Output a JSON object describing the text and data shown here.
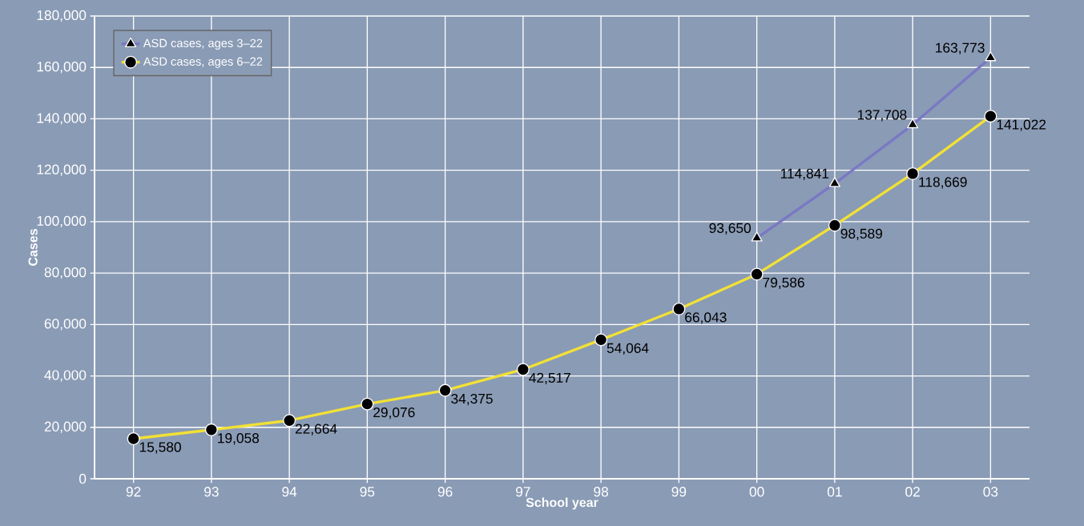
{
  "chart_data": {
    "type": "line",
    "xlabel": "School year",
    "ylabel": "Cases",
    "categories": [
      "92",
      "93",
      "94",
      "95",
      "96",
      "97",
      "98",
      "99",
      "00",
      "01",
      "02",
      "03"
    ],
    "series": [
      {
        "name": "ASD cases, ages 3–22",
        "color": "#7a78c4",
        "marker": "triangle",
        "values": [
          null,
          null,
          null,
          null,
          null,
          null,
          null,
          null,
          93650,
          114841,
          137708,
          163773
        ],
        "value_labels": [
          null,
          null,
          null,
          null,
          null,
          null,
          null,
          null,
          "93,650",
          "114,841",
          "137,708",
          "163,773"
        ]
      },
      {
        "name": "ASD cases, ages 6–22",
        "color": "#f2e135",
        "marker": "circle",
        "values": [
          15580,
          19058,
          22664,
          29076,
          34375,
          42517,
          54064,
          66043,
          79586,
          98589,
          118669,
          141022
        ],
        "value_labels": [
          "15,580",
          "19,058",
          "22,664",
          "29,076",
          "34,375",
          "42,517",
          "54,064",
          "66,043",
          "79,586",
          "98,589",
          "118,669",
          "141,022"
        ]
      }
    ],
    "ylim": [
      0,
      180000
    ],
    "yticks": [
      0,
      {
        "value": 20000,
        "label": "20,000"
      },
      {
        "value": 40000,
        "label": "40,000"
      },
      {
        "value": 60000,
        "label": "60,000"
      },
      {
        "value": 80000,
        "label": "80,000"
      },
      {
        "value": 100000,
        "label": "100,000"
      },
      {
        "value": 120000,
        "label": "120,000"
      },
      {
        "value": 140000,
        "label": "140,000"
      },
      {
        "value": 160000,
        "label": "160,000"
      },
      {
        "value": 180000,
        "label": "180,000"
      }
    ],
    "grid": true,
    "legend": "top left",
    "line_style": "solid"
  }
}
